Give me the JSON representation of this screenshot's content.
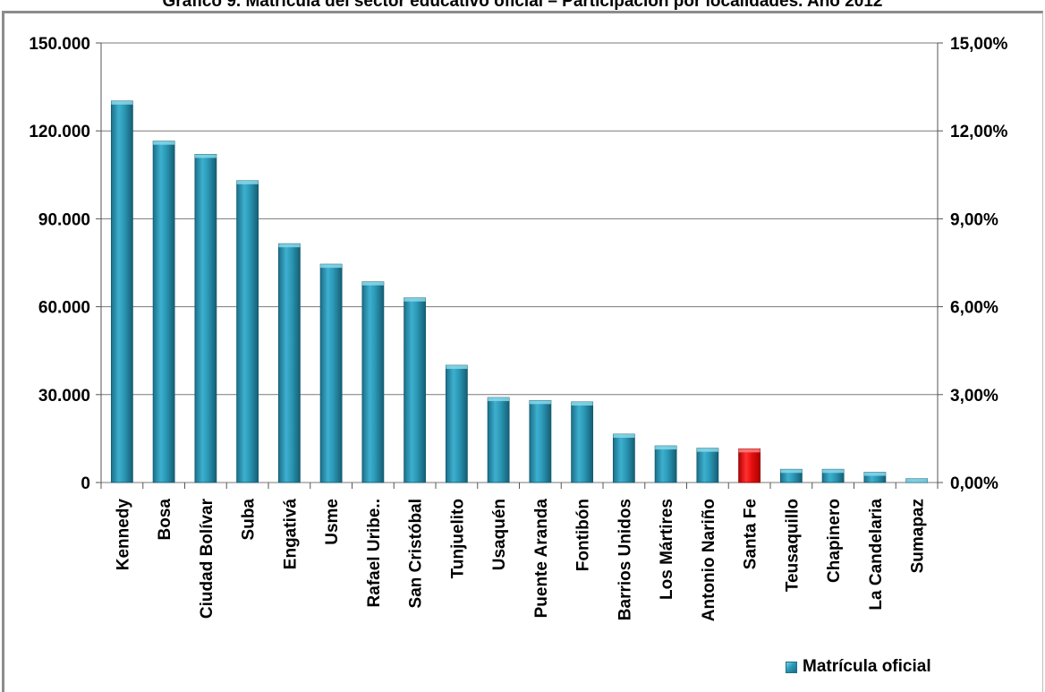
{
  "chart_data": {
    "type": "bar",
    "title": "Gráfico 9. Matrícula del sector educativo oficial – Participación por localidades. Año 2012",
    "categories": [
      "Kennedy",
      "Bosa",
      "Ciudad Bolívar",
      "Suba",
      "Engativá",
      "Usme",
      "Rafael Uribe..",
      "San Cristóbal",
      "Tunjuelito",
      "Usaquén",
      "Puente Aranda",
      "Fontibón",
      "Barrios Unidos",
      "Los Mártires",
      "Antonio Nariño",
      "Santa Fe",
      "Teusaquillo",
      "Chapinero",
      "La Candelaria",
      "Sumapaz"
    ],
    "series": [
      {
        "name": "Matrícula oficial",
        "values": [
          130200,
          116500,
          112000,
          103000,
          81500,
          74500,
          68500,
          63000,
          40000,
          29000,
          28000,
          27500,
          16500,
          12500,
          11700,
          11500,
          4500,
          4500,
          3500,
          1300
        ],
        "color": "#2a95b3",
        "highlight_index": 15,
        "highlight_color": "#ee1111"
      }
    ],
    "y_left": {
      "ylim": [
        0,
        150000
      ],
      "tick_labels": [
        "0",
        "30.000",
        "60.000",
        "90.000",
        "120.000",
        "150.000"
      ]
    },
    "y_right": {
      "ylim": [
        0,
        15
      ],
      "tick_labels": [
        "0,00%",
        "3,00%",
        "6,00%",
        "9,00%",
        "12,00%",
        "15,00%"
      ]
    },
    "grid": true,
    "legend_position": "bottom-right"
  }
}
